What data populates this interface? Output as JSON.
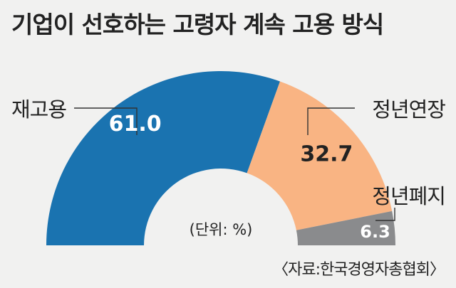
{
  "title": "기업이 선호하는 고령자 계속 고용 방식",
  "source": "〈자료:한국경영자총협회〉",
  "colors": {
    "reemployment": "#1a73b0",
    "extension": "#f9b483",
    "abolition": "#8a8b8d",
    "background": "#f1f1f0"
  },
  "chart_data": {
    "type": "pie",
    "subtype": "half-donut",
    "unit_note": "(단위: %)",
    "categories": [
      "재고용",
      "정년연장",
      "정년폐지"
    ],
    "values": [
      61.0,
      32.7,
      6.3
    ],
    "value_labels": [
      "61.0",
      "32.7",
      "6.3"
    ]
  }
}
